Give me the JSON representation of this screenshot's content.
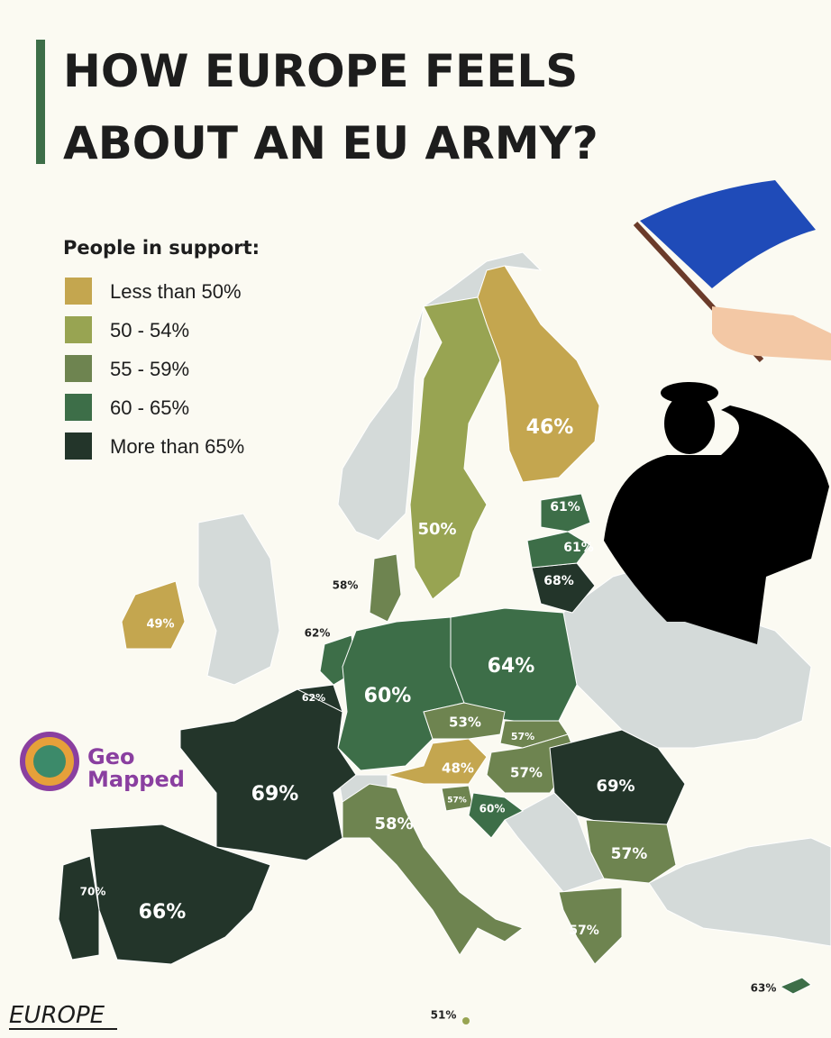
{
  "header": {
    "title_lines": [
      "HOW EUROPE FEELS",
      "ABOUT AN EU ARMY?"
    ]
  },
  "legend": {
    "title": "People in support:",
    "items": [
      {
        "label": "Less than 50%",
        "color": "#c4a64f"
      },
      {
        "label": "50 - 54%",
        "color": "#98a452"
      },
      {
        "label": "55 - 59%",
        "color": "#6e8450"
      },
      {
        "label": "60 - 65%",
        "color": "#3d6e48"
      },
      {
        "label": "More than 65%",
        "color": "#23352a"
      }
    ]
  },
  "map": {
    "labels": [
      "46%",
      "50%",
      "61%",
      "61%",
      "68%",
      "58%",
      "49%",
      "62%",
      "62%",
      "60%",
      "64%",
      "53%",
      "57%",
      "57%",
      "48%",
      "69%",
      "69%",
      "57%",
      "60%",
      "58%",
      "57%",
      "70%",
      "66%",
      "57%",
      "63%",
      "51%"
    ]
  },
  "logo": {
    "lines": [
      "Geo",
      "Mapped"
    ]
  },
  "footer": "EUROPE"
}
